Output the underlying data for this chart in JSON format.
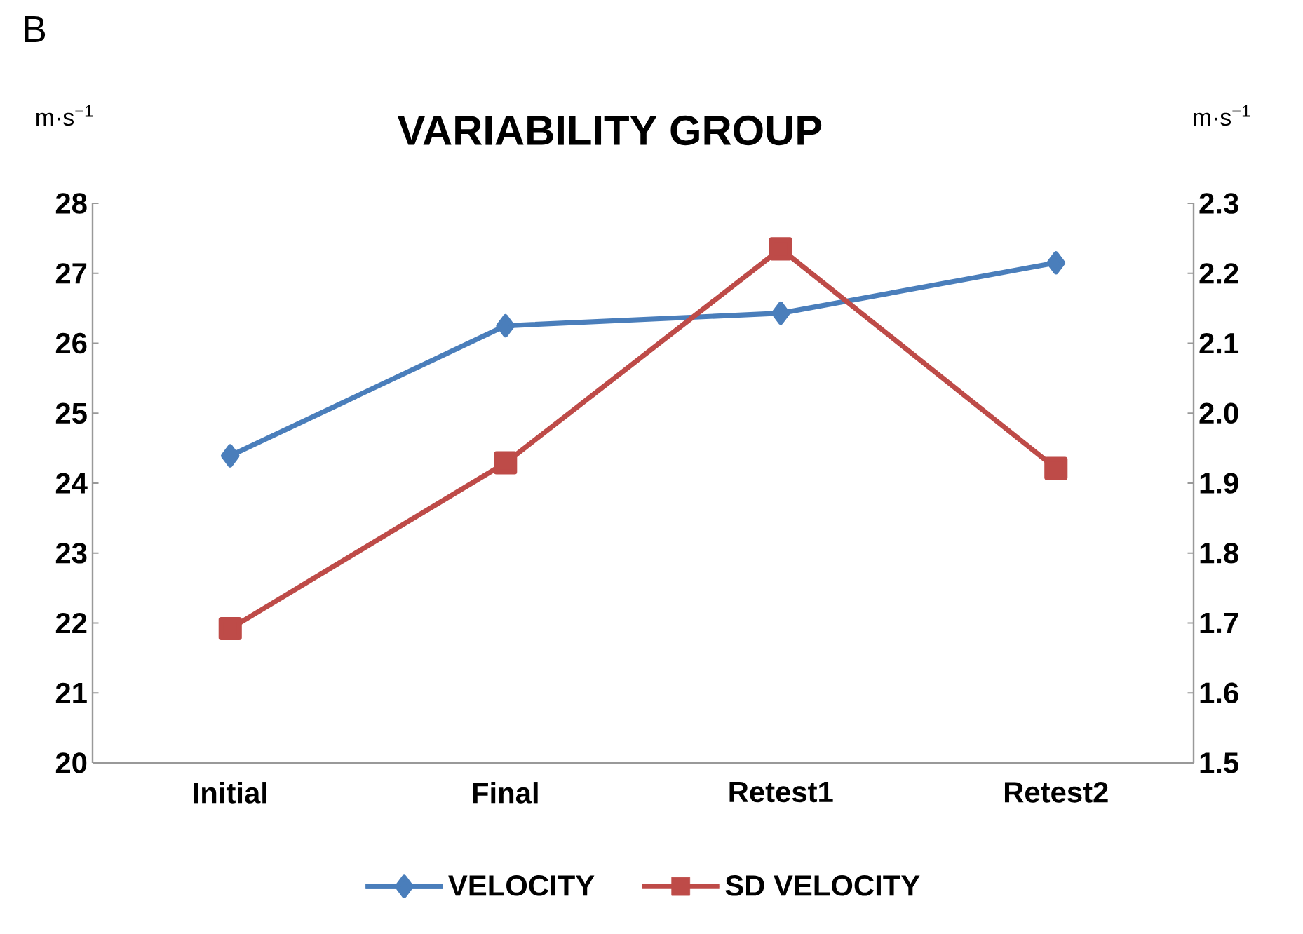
{
  "chart_data": {
    "type": "line",
    "title": "VARIABILITY GROUP",
    "ylabel": "m·s$^{−1}$",
    "y2label": "m·s$^{−1}$",
    "annotations": [
      "B"
    ],
    "categories": [
      "Initial",
      "Final",
      "Retest1",
      "Retest2"
    ],
    "series": [
      {
        "name": "VELOCITY",
        "color": "#4a7ebb",
        "marker": "diamond",
        "values": [
          24.39,
          26.25,
          26.43,
          27.15
        ]
      },
      {
        "name": "SD VELOCITY",
        "color": "#be4b48",
        "marker": "square",
        "axis": "y2",
        "values": [
          1.692,
          1.929,
          2.235,
          1.921
        ]
      }
    ],
    "ylim": [
      20,
      28
    ],
    "yticks": [
      20,
      21,
      22,
      23,
      24,
      25,
      26,
      27,
      28
    ],
    "y2lim": [
      1.5,
      2.3
    ],
    "y2ticks": [
      {
        "value": 1.5,
        "label": "1.5"
      },
      {
        "value": 1.6,
        "label": "1.6"
      },
      {
        "value": 1.7,
        "label": "1.7"
      },
      {
        "value": 1.8,
        "label": "1.8"
      },
      {
        "value": 1.9,
        "label": "1.9"
      },
      {
        "value": 2.0,
        "label": "2.0"
      },
      {
        "value": 2.1,
        "label": "2.1"
      },
      {
        "value": 2.2,
        "label": "2.2"
      },
      {
        "value": 2.3,
        "label": "2.3"
      }
    ],
    "grid": false,
    "legend": "bottom"
  }
}
